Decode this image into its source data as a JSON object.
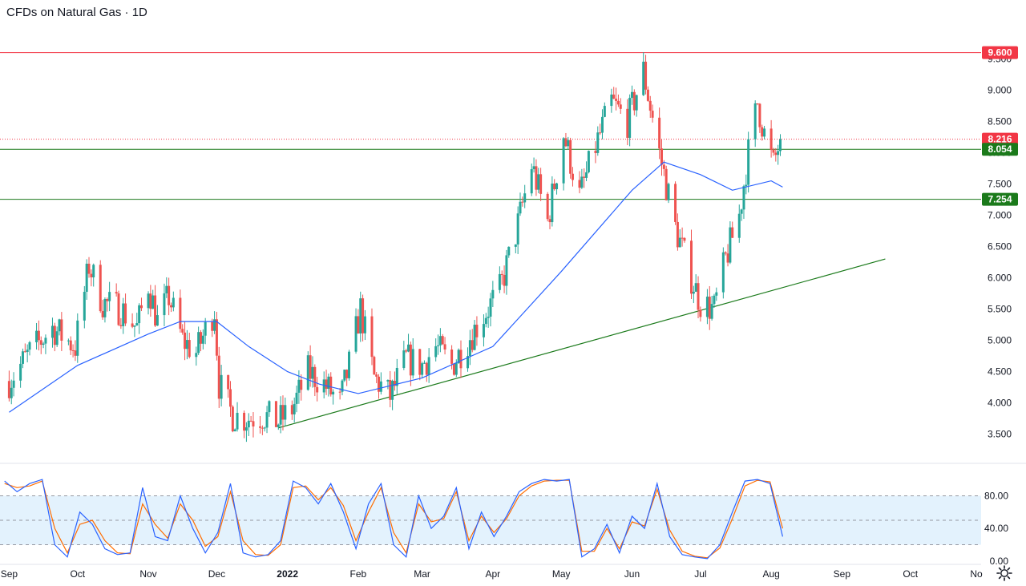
{
  "title": "CFDs on Natural Gas · 1D",
  "icons": {
    "settings": "gear-icon"
  },
  "colors": {
    "up": "#26a69a",
    "down": "#ef5350",
    "resistance": "#f23645",
    "support": "#1b7a1b",
    "ma": "#2962ff",
    "stoch_k": "#2962ff",
    "stoch_d": "#ff6d00",
    "stoch_band": "#e3f2fd",
    "last_price": "#f23645"
  },
  "chart_data": [
    {
      "type": "candlestick",
      "title": "CFDs on Natural Gas",
      "timeframe": "1D",
      "x_ticks": [
        "Sep",
        "Oct",
        "Nov",
        "Dec",
        "2022",
        "Feb",
        "Mar",
        "Apr",
        "May",
        "Jun",
        "Jul",
        "Aug",
        "Sep",
        "Oct",
        "No"
      ],
      "y_ticks": [
        "3.500",
        "4.000",
        "4.500",
        "5.000",
        "5.500",
        "6.000",
        "6.500",
        "7.000",
        "7.500",
        "8.000",
        "8.500",
        "9.000",
        "9.500"
      ],
      "ylim": [
        3.2,
        9.8
      ],
      "horizontal_levels": [
        {
          "label": "9.600",
          "value": 9.6,
          "style": "solid",
          "color": "#f23645"
        },
        {
          "label": "8.216",
          "value": 8.216,
          "style": "dotted",
          "color": "#f23645"
        },
        {
          "label": "8.054",
          "value": 8.054,
          "style": "solid",
          "color": "#1b7a1b"
        },
        {
          "label": "7.254",
          "value": 7.254,
          "style": "solid",
          "color": "#1b7a1b"
        }
      ],
      "trendline": {
        "from": {
          "date": "2021-12-28",
          "value": 3.6
        },
        "to": {
          "date": "2022-09-20",
          "value": 6.3
        }
      },
      "closes": [
        {
          "date": "2021-09-01",
          "close": 4.35
        },
        {
          "date": "2021-09-10",
          "close": 4.8
        },
        {
          "date": "2021-09-20",
          "close": 5.2
        },
        {
          "date": "2021-09-30",
          "close": 4.9
        },
        {
          "date": "2021-10-06",
          "close": 6.2
        },
        {
          "date": "2021-10-12",
          "close": 5.6
        },
        {
          "date": "2021-10-20",
          "close": 5.5
        },
        {
          "date": "2021-10-27",
          "close": 5.2
        },
        {
          "date": "2021-11-01",
          "close": 5.9
        },
        {
          "date": "2021-11-05",
          "close": 5.3
        },
        {
          "date": "2021-11-10",
          "close": 5.7
        },
        {
          "date": "2021-11-16",
          "close": 5.0
        },
        {
          "date": "2021-11-22",
          "close": 4.8
        },
        {
          "date": "2021-11-30",
          "close": 5.5
        },
        {
          "date": "2021-12-02",
          "close": 4.3
        },
        {
          "date": "2021-12-08",
          "close": 3.8
        },
        {
          "date": "2021-12-14",
          "close": 3.75
        },
        {
          "date": "2021-12-21",
          "close": 3.8
        },
        {
          "date": "2021-12-28",
          "close": 3.7
        },
        {
          "date": "2022-01-03",
          "close": 3.9
        },
        {
          "date": "2022-01-10",
          "close": 4.5
        },
        {
          "date": "2022-01-17",
          "close": 4.3
        },
        {
          "date": "2022-01-24",
          "close": 4.0
        },
        {
          "date": "2022-01-28",
          "close": 4.6
        },
        {
          "date": "2022-02-02",
          "close": 5.5
        },
        {
          "date": "2022-02-08",
          "close": 4.4
        },
        {
          "date": "2022-02-15",
          "close": 4.1
        },
        {
          "date": "2022-02-22",
          "close": 4.7
        },
        {
          "date": "2022-03-01",
          "close": 4.6
        },
        {
          "date": "2022-03-07",
          "close": 4.9
        },
        {
          "date": "2022-03-14",
          "close": 4.6
        },
        {
          "date": "2022-03-21",
          "close": 5.0
        },
        {
          "date": "2022-03-28",
          "close": 5.4
        },
        {
          "date": "2022-04-04",
          "close": 5.8
        },
        {
          "date": "2022-04-11",
          "close": 6.7
        },
        {
          "date": "2022-04-18",
          "close": 7.8
        },
        {
          "date": "2022-04-25",
          "close": 6.9
        },
        {
          "date": "2022-05-02",
          "close": 8.3
        },
        {
          "date": "2022-05-09",
          "close": 7.3
        },
        {
          "date": "2022-05-16",
          "close": 8.1
        },
        {
          "date": "2022-05-23",
          "close": 8.8
        },
        {
          "date": "2022-05-30",
          "close": 8.5
        },
        {
          "date": "2022-06-06",
          "close": 9.3
        },
        {
          "date": "2022-06-13",
          "close": 8.0
        },
        {
          "date": "2022-06-20",
          "close": 6.8
        },
        {
          "date": "2022-06-27",
          "close": 6.0
        },
        {
          "date": "2022-07-01",
          "close": 5.6
        },
        {
          "date": "2022-07-07",
          "close": 5.5
        },
        {
          "date": "2022-07-12",
          "close": 6.3
        },
        {
          "date": "2022-07-18",
          "close": 7.0
        },
        {
          "date": "2022-07-22",
          "close": 8.0
        },
        {
          "date": "2022-07-26",
          "close": 8.8
        },
        {
          "date": "2022-07-29",
          "close": 8.3
        },
        {
          "date": "2022-08-02",
          "close": 7.8
        },
        {
          "date": "2022-08-05",
          "close": 8.216
        }
      ],
      "moving_average": [
        {
          "date": "2021-09-01",
          "value": 3.85
        },
        {
          "date": "2021-10-01",
          "value": 4.6
        },
        {
          "date": "2021-11-01",
          "value": 5.1
        },
        {
          "date": "2021-11-15",
          "value": 5.3
        },
        {
          "date": "2021-12-01",
          "value": 5.3
        },
        {
          "date": "2021-12-15",
          "value": 4.9
        },
        {
          "date": "2022-01-01",
          "value": 4.5
        },
        {
          "date": "2022-01-15",
          "value": 4.3
        },
        {
          "date": "2022-02-01",
          "value": 4.15
        },
        {
          "date": "2022-03-01",
          "value": 4.4
        },
        {
          "date": "2022-04-01",
          "value": 4.9
        },
        {
          "date": "2022-05-01",
          "value": 6.1
        },
        {
          "date": "2022-06-01",
          "value": 7.4
        },
        {
          "date": "2022-06-15",
          "value": 7.85
        },
        {
          "date": "2022-07-01",
          "value": 7.65
        },
        {
          "date": "2022-07-15",
          "value": 7.4
        },
        {
          "date": "2022-08-01",
          "value": 7.55
        },
        {
          "date": "2022-08-06",
          "value": 7.45
        }
      ]
    },
    {
      "type": "line",
      "indicator": "stochastic",
      "y_ticks": [
        "0.00",
        "40.00",
        "80.00"
      ],
      "ylim": [
        -5,
        105
      ],
      "band": [
        20,
        80
      ],
      "levels": [
        20,
        50,
        80
      ],
      "series": [
        {
          "values": [
            98,
            85,
            95,
            100,
            20,
            5,
            60,
            45,
            15,
            8,
            10,
            90,
            30,
            25,
            80,
            40,
            10,
            35,
            95,
            10,
            5,
            8,
            25,
            98,
            90,
            70,
            95,
            60,
            15,
            70,
            95,
            20,
            5,
            80,
            40,
            55,
            90,
            15,
            60,
            30,
            55,
            85,
            95,
            100,
            98,
            100,
            5,
            15,
            45,
            10,
            55,
            40,
            95,
            30,
            8,
            5,
            3,
            20,
            60,
            98,
            100,
            95,
            30
          ]
        },
        {
          "values": [
            95,
            90,
            92,
            98,
            40,
            10,
            45,
            50,
            25,
            10,
            9,
            70,
            45,
            28,
            70,
            50,
            18,
            30,
            85,
            25,
            8,
            7,
            20,
            90,
            92,
            75,
            90,
            68,
            25,
            60,
            90,
            35,
            10,
            70,
            48,
            52,
            85,
            25,
            55,
            35,
            52,
            80,
            92,
            98,
            99,
            99,
            12,
            12,
            40,
            15,
            48,
            43,
            88,
            38,
            12,
            6,
            4,
            16,
            52,
            92,
            99,
            97,
            40
          ]
        }
      ]
    }
  ]
}
